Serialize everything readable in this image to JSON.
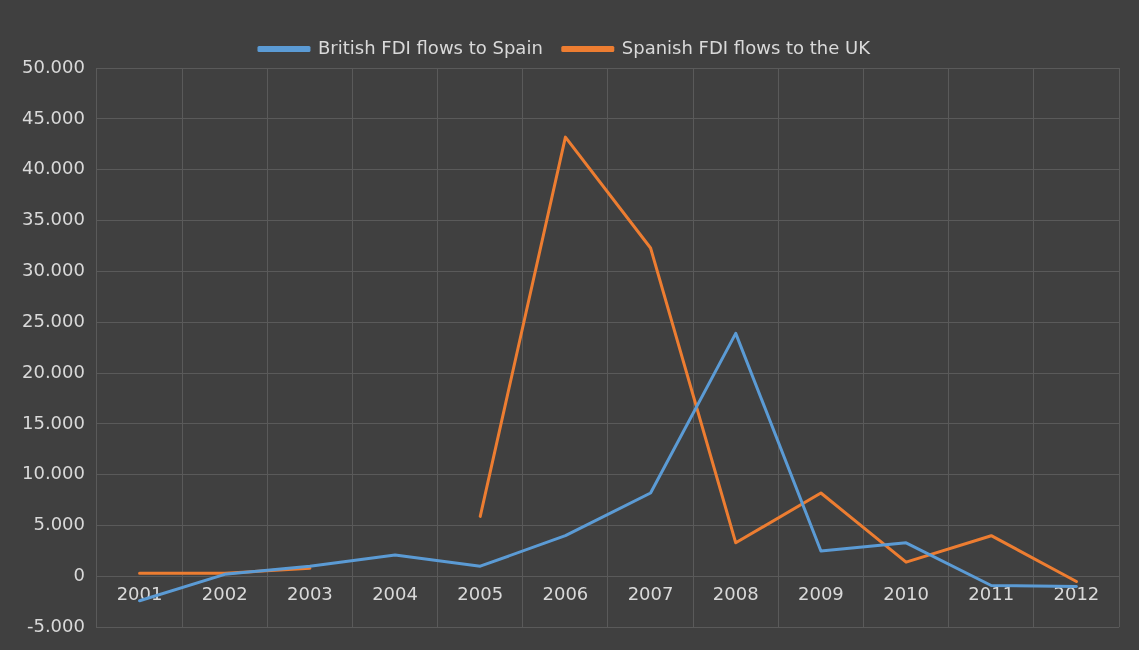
{
  "chart_data": {
    "type": "line",
    "categories": [
      "2001",
      "2002",
      "2003",
      "2004",
      "2005",
      "2006",
      "2007",
      "2008",
      "2009",
      "2010",
      "2011",
      "2012"
    ],
    "series": [
      {
        "name": "British FDI flows to Spain",
        "color": "#5b9bd5",
        "values": [
          -2400,
          200,
          1000,
          2100,
          1000,
          4000,
          8200,
          23900,
          2500,
          3300,
          -900,
          -1000
        ]
      },
      {
        "name": "Spanish FDI flows to the UK",
        "color": "#ed7d31",
        "values": [
          300,
          300,
          800,
          null,
          5900,
          43200,
          32300,
          3300,
          8200,
          1400,
          4000,
          -500
        ]
      }
    ],
    "ylim": [
      -5000,
      50000
    ],
    "yticks": [
      {
        "value": -5000,
        "label": "-5.000"
      },
      {
        "value": 0,
        "label": "0"
      },
      {
        "value": 5000,
        "label": "5.000"
      },
      {
        "value": 10000,
        "label": "10.000"
      },
      {
        "value": 15000,
        "label": "15.000"
      },
      {
        "value": 20000,
        "label": "20.000"
      },
      {
        "value": 25000,
        "label": "25.000"
      },
      {
        "value": 30000,
        "label": "30.000"
      },
      {
        "value": 35000,
        "label": "35.000"
      },
      {
        "value": 40000,
        "label": "40.000"
      },
      {
        "value": 45000,
        "label": "45.000"
      },
      {
        "value": 50000,
        "label": "50.000"
      }
    ],
    "grid": true,
    "legend": "top",
    "marker": "none",
    "line_style": "solid"
  }
}
